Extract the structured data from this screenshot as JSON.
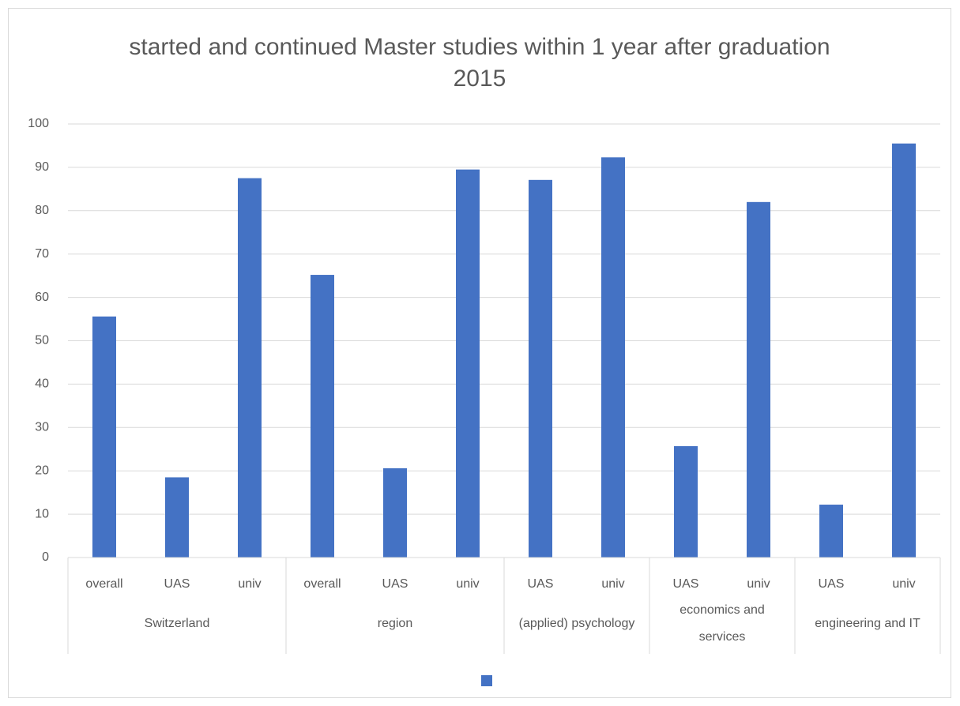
{
  "chart_data": {
    "type": "bar",
    "title": "started and continued Master studies within 1 year after graduation 2015",
    "color": "#4472c4",
    "groups": [
      {
        "label": "Switzerland",
        "categories": [
          "overall",
          "UAS",
          "univ"
        ],
        "values": [
          55.6,
          18.5,
          87.5
        ]
      },
      {
        "label": "region",
        "categories": [
          "overall",
          "UAS",
          "univ"
        ],
        "values": [
          65.2,
          20.6,
          89.5
        ]
      },
      {
        "label": "(applied) psychology",
        "categories": [
          "UAS",
          "univ"
        ],
        "values": [
          87.1,
          92.3
        ]
      },
      {
        "label": "economics and services",
        "categories": [
          "UAS",
          "univ"
        ],
        "values": [
          25.7,
          82
        ]
      },
      {
        "label": "engineering and IT",
        "categories": [
          "UAS",
          "univ"
        ],
        "values": [
          12.2,
          95.5
        ]
      }
    ],
    "ylim": [
      0,
      100
    ],
    "yticks": [
      0,
      10,
      20,
      30,
      40,
      50,
      60,
      70,
      80,
      90,
      100
    ],
    "grid": true
  }
}
